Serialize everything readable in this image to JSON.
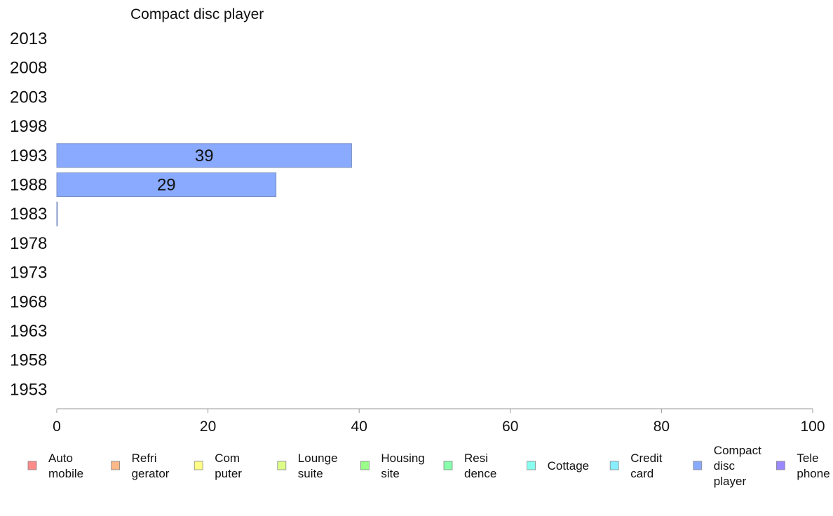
{
  "chart_data": {
    "type": "bar",
    "orientation": "horizontal",
    "title": "Compact disc player",
    "categories": [
      "2013",
      "2008",
      "2003",
      "1998",
      "1993",
      "1988",
      "1983",
      "1978",
      "1973",
      "1968",
      "1963",
      "1958",
      "1953"
    ],
    "series": [
      {
        "name": "Compact disc player",
        "color": "#8aaaff",
        "values": [
          null,
          null,
          null,
          null,
          39,
          29,
          0,
          null,
          null,
          null,
          null,
          null,
          null
        ],
        "labels": [
          "",
          "",
          "",
          "",
          "39",
          "29",
          "",
          "",
          "",
          "",
          "",
          "",
          ""
        ]
      }
    ],
    "xlim": [
      0,
      100
    ],
    "xticks": [
      "0",
      "20",
      "40",
      "60",
      "80",
      "100"
    ],
    "grid": false,
    "legend_position": "bottom",
    "legend": [
      {
        "label": "Auto\nmobile",
        "color": "#ff8a8a"
      },
      {
        "label": "Refri\ngerator",
        "color": "#ffb888"
      },
      {
        "label": "Com\nputer",
        "color": "#ffff88"
      },
      {
        "label": "Lounge\nsuite",
        "color": "#ddff88"
      },
      {
        "label": "Housing\nsite",
        "color": "#99ff88"
      },
      {
        "label": "Resi\ndence",
        "color": "#88ffaa"
      },
      {
        "label": "Cottage",
        "color": "#88ffee"
      },
      {
        "label": "Credit\ncard",
        "color": "#88eeff"
      },
      {
        "label": "Compact\ndisc\nplayer",
        "color": "#8aaaff"
      },
      {
        "label": "Tele\nphone",
        "color": "#9988ff"
      }
    ]
  }
}
